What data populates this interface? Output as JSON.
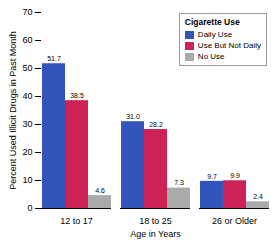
{
  "chart_data": {
    "type": "bar",
    "categories": [
      "12 to 17",
      "18 to 25",
      "26 or Older"
    ],
    "series": [
      {
        "name": "Daily Use",
        "color": "#3355bb",
        "values": [
          51.7,
          31.0,
          9.7
        ],
        "value_labels": [
          "51.7",
          "31.0",
          "9.7"
        ]
      },
      {
        "name": "Use But Not Daily",
        "color": "#cc2255",
        "values": [
          38.5,
          28.2,
          9.9
        ],
        "value_labels": [
          "38.5",
          "28.2",
          "9.9"
        ]
      },
      {
        "name": "No Use",
        "color": "#aaaaaa",
        "values": [
          4.6,
          7.3,
          2.4
        ],
        "value_labels": [
          "4.6",
          "7.3",
          "2.4"
        ]
      }
    ],
    "xlabel": "Age in Years",
    "ylabel": "Percent Used Illicit Drugs in Past Month",
    "legend_title": "Cigarette Use",
    "legend": "upper right",
    "ylim": [
      0,
      70
    ],
    "yticks": [
      0,
      10,
      20,
      30,
      40,
      50,
      60,
      70
    ],
    "data_labels": true,
    "grid": false
  }
}
